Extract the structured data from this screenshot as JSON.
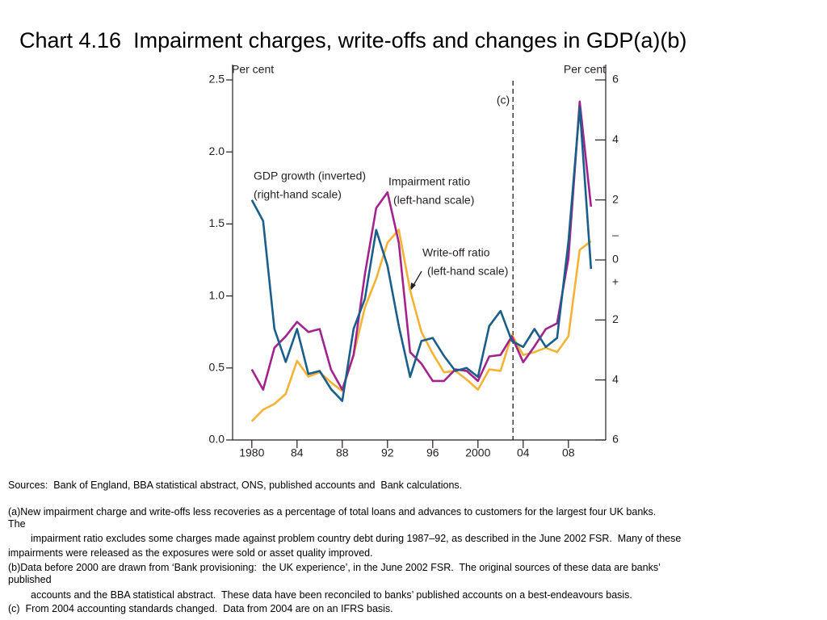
{
  "chart_data": {
    "type": "line",
    "title": "Chart 4.16  Impairment charges, write-offs and changes in GDP(a)(b)",
    "y_label": "Per cent",
    "y2_label": "Per cent",
    "x": [
      1980,
      1981,
      1982,
      1983,
      1984,
      1985,
      1986,
      1987,
      1988,
      1989,
      1990,
      1991,
      1992,
      1993,
      1994,
      1995,
      1996,
      1997,
      1998,
      1999,
      2000,
      2001,
      2002,
      2003,
      2004,
      2005,
      2006,
      2007,
      2008,
      2009,
      2010
    ],
    "series": [
      {
        "name": "Write-off ratio",
        "color": "#f5b335",
        "axis": "y",
        "values": [
          0.13,
          0.21,
          0.25,
          0.32,
          0.55,
          0.44,
          0.47,
          0.4,
          0.34,
          0.59,
          0.92,
          1.12,
          1.37,
          1.46,
          1.04,
          0.75,
          0.6,
          0.47,
          0.48,
          0.42,
          0.35,
          0.49,
          0.48,
          0.73,
          0.59,
          0.61,
          0.64,
          0.61,
          0.72,
          1.32,
          1.38
        ]
      },
      {
        "name": "Impairment ratio",
        "color": "#a3238e",
        "axis": "y",
        "values": [
          0.49,
          0.35,
          0.64,
          0.72,
          0.82,
          0.75,
          0.77,
          0.49,
          0.35,
          0.59,
          1.15,
          1.61,
          1.72,
          1.37,
          0.61,
          0.53,
          0.41,
          0.41,
          0.49,
          0.48,
          0.41,
          0.58,
          0.59,
          0.72,
          0.54,
          0.65,
          0.77,
          0.81,
          1.26,
          2.35,
          1.62
        ]
      },
      {
        "name": "GDP growth (inverted)",
        "color": "#1a5e8a",
        "axis": "y2",
        "values": [
          -2.0,
          -1.3,
          2.3,
          3.4,
          2.3,
          3.8,
          3.7,
          4.3,
          4.7,
          2.3,
          1.3,
          -1.0,
          0.2,
          2.2,
          3.9,
          2.7,
          2.6,
          3.2,
          3.7,
          3.6,
          3.9,
          2.2,
          1.7,
          2.7,
          2.9,
          2.3,
          2.9,
          2.6,
          -0.6,
          -5.1,
          0.3
        ]
      }
    ],
    "annotations": [
      "(right-hand scale)",
      "(left-hand scale)",
      "(left-hand scale)",
      "(c)",
      "–",
      "+"
    ],
    "break_x": 2003.1,
    "xlim": [
      1978.3,
      2011.3
    ],
    "xticks": [
      1980,
      {
        "value": 1984,
        "label": "84"
      },
      {
        "value": 1988,
        "label": "88"
      },
      {
        "value": 1992,
        "label": "92"
      },
      {
        "value": 1996,
        "label": "96"
      },
      2000,
      {
        "value": 2004,
        "label": "04"
      },
      {
        "value": 2008,
        "label": "08"
      }
    ],
    "ylim": [
      0,
      2.5
    ],
    "yticks": [
      {
        "value": 0,
        "label": "0.0"
      },
      0.5,
      {
        "value": 1,
        "label": "1.0"
      },
      1.5,
      {
        "value": 2,
        "label": "2.0"
      },
      2.5
    ],
    "y2lim": [
      6,
      -6
    ],
    "y2ticks": [
      {
        "value": -6,
        "label": "6"
      },
      {
        "value": -4,
        "label": "4"
      },
      {
        "value": -2,
        "label": "2"
      },
      0,
      2,
      4,
      6
    ]
  },
  "notes": [
    "Sources:  Bank of England, BBA statistical abstract, ONS, published accounts and  Bank calculations.",
    "(a)New impairment charge and write-offs less recoveries as a percentage of total loans and advances to customers for the largest four UK banks.",
    "The",
    "impairment ratio excludes some charges made against problem country debt during 1987–92, as described in the June 2002 FSR.  Many of these",
    "impairments were released as the exposures were sold or asset quality improved.",
    "(b)Data before 2000 are drawn from ‘Bank provisioning:  the UK experience’, in the June 2002 FSR.  The original sources of these data are banks’",
    "published",
    "accounts and the BBA statistical abstract.  These data have been reconciled to banks’ published accounts on a best-endeavours basis.",
    "(c)  From 2004 accounting standards changed.  Data from 2004 are on an IFRS basis."
  ]
}
